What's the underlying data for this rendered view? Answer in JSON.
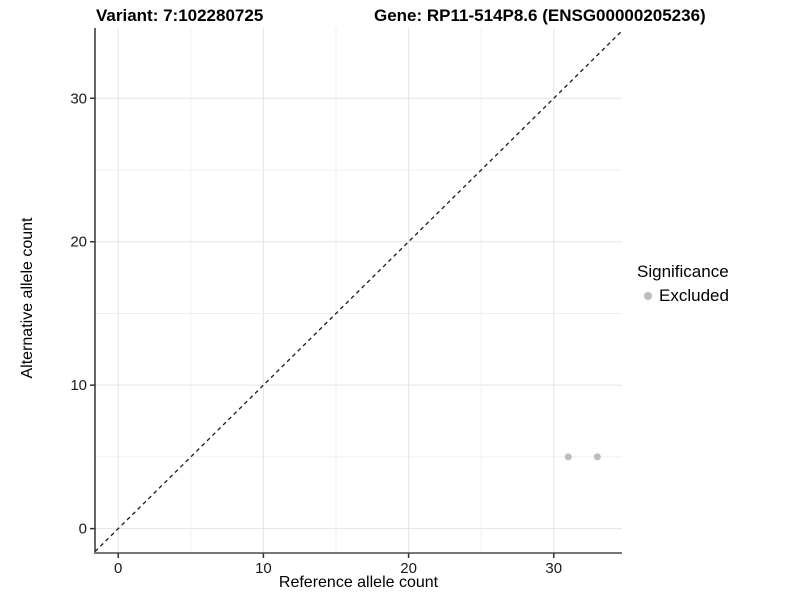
{
  "colors": {
    "background": "#ffffff",
    "text": "#000000",
    "grid_major": "#e4e4e4",
    "grid_minor": "#efefef",
    "axis_line_y": "#333333",
    "axis_line_x": "#777777",
    "tick_mark": "#333333",
    "tick_label": "#1a1a1a",
    "identity_line": "#1a1a1a",
    "point": "#bdbdbd"
  },
  "chart_data": {
    "type": "scatter",
    "title_left": "Variant: 7:102280725",
    "title_right": "Gene: RP11-514P8.6 (ENSG00000205236)",
    "xlabel": "Reference allele count",
    "ylabel": "Alternative allele count",
    "xticks": [
      0,
      10,
      20,
      30
    ],
    "yticks": [
      0,
      10,
      20,
      30
    ],
    "xlim": [
      -1.6,
      34.7
    ],
    "ylim": [
      -1.7,
      34.9
    ],
    "grid": true,
    "grid_step": 5,
    "reference_line": {
      "type": "identity",
      "style": "dashed"
    },
    "series": [
      {
        "name": "Excluded",
        "color": "#bdbdbd",
        "points": [
          {
            "x": 31,
            "y": 5
          },
          {
            "x": 33,
            "y": 5
          }
        ]
      }
    ],
    "legend": {
      "title": "Significance",
      "position": "right",
      "items": [
        {
          "label": "Excluded",
          "color": "#bdbdbd"
        }
      ]
    }
  }
}
